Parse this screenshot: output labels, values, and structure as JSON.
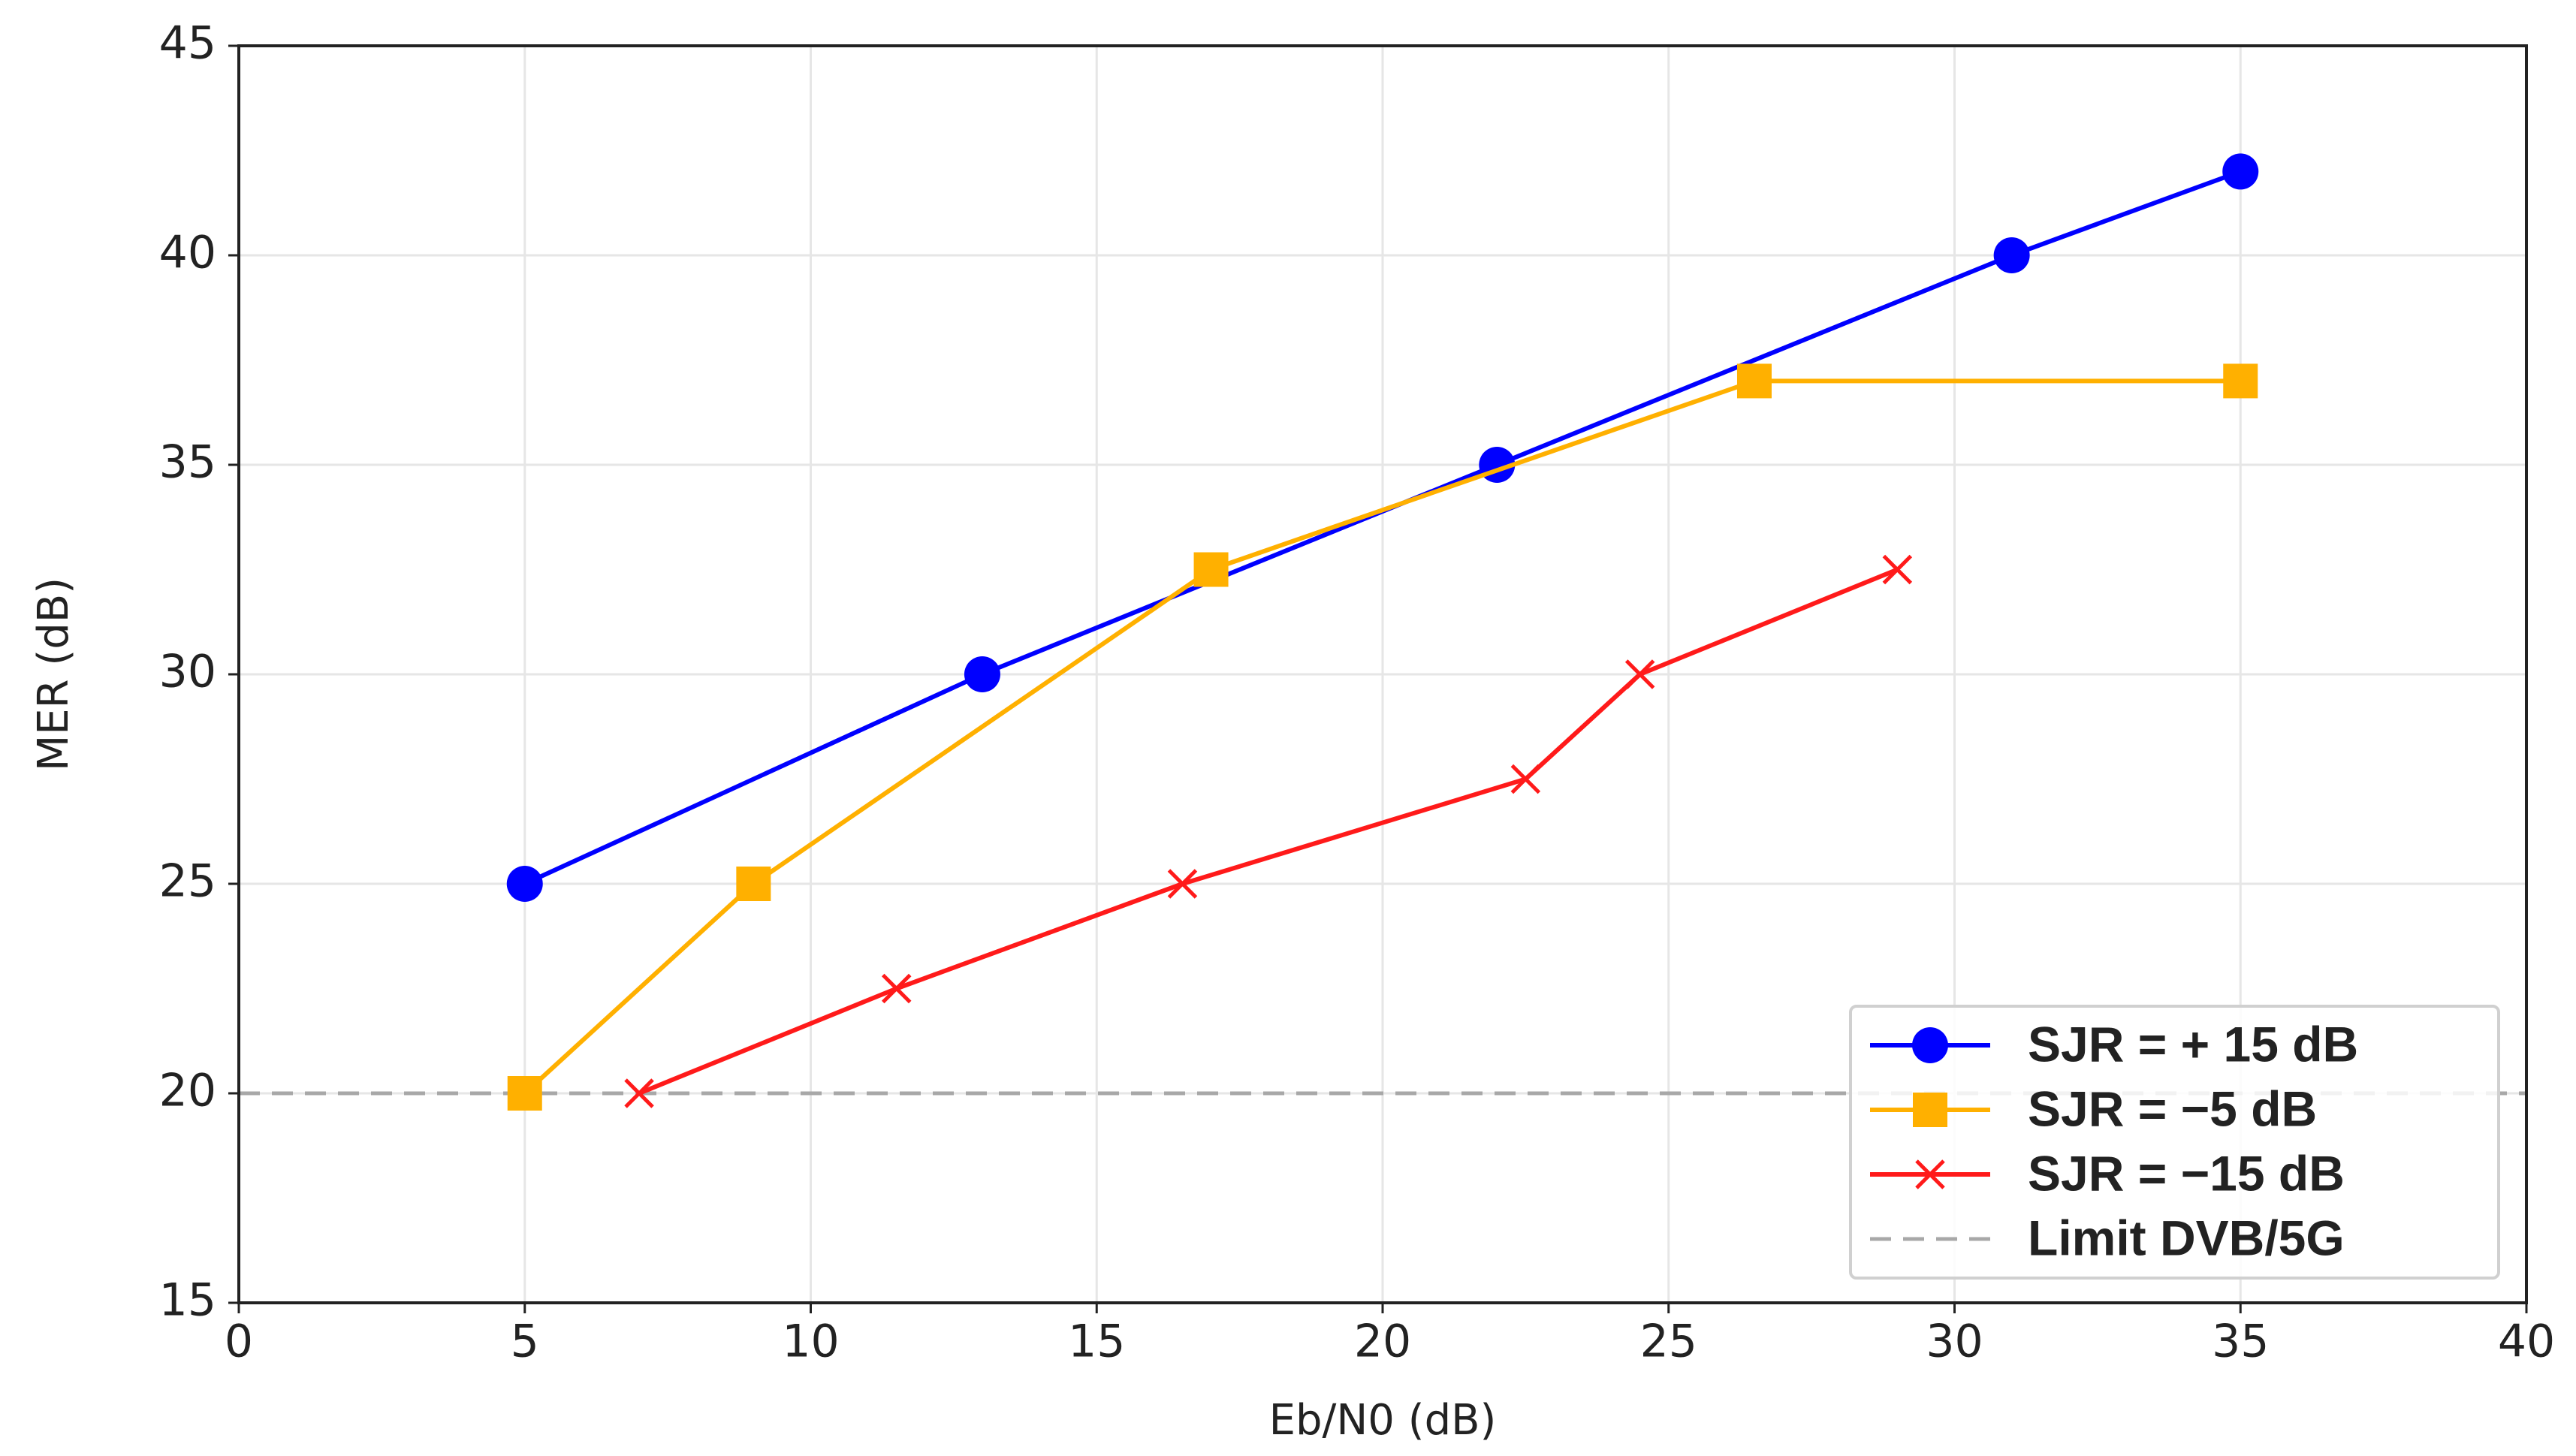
{
  "chart_data": {
    "type": "line",
    "x_label": "Eb/N0 (dB)",
    "y_label": "MER (dB)",
    "xlim": [
      0,
      40
    ],
    "ylim": [
      15,
      45
    ],
    "xticks": [
      0,
      5,
      10,
      15,
      20,
      25,
      30,
      35,
      40
    ],
    "yticks": [
      15,
      20,
      25,
      30,
      35,
      40,
      45
    ],
    "grid": true,
    "legend": "lower right",
    "series": [
      {
        "name": "SJR = + 15 dB",
        "color": "#0000ff",
        "marker": "o",
        "x": [
          5,
          13,
          22,
          31,
          35
        ],
        "values": [
          25,
          30,
          35,
          40,
          42
        ]
      },
      {
        "name": "SJR = −5 dB",
        "color": "#ffb000",
        "marker": "s",
        "x": [
          5,
          9,
          17,
          26.5,
          35
        ],
        "values": [
          20,
          25,
          32.5,
          37,
          37
        ]
      },
      {
        "name": "SJR = −15 dB",
        "color": "#ff1a1a",
        "marker": "x",
        "x": [
          7,
          11.5,
          16.5,
          22.5,
          24.5,
          29
        ],
        "values": [
          20,
          22.5,
          25,
          27.5,
          30,
          32.5
        ]
      }
    ],
    "hlines": [
      {
        "name": "Limit DVB/5G",
        "value": 20,
        "color": "#a8a8a8"
      }
    ]
  }
}
